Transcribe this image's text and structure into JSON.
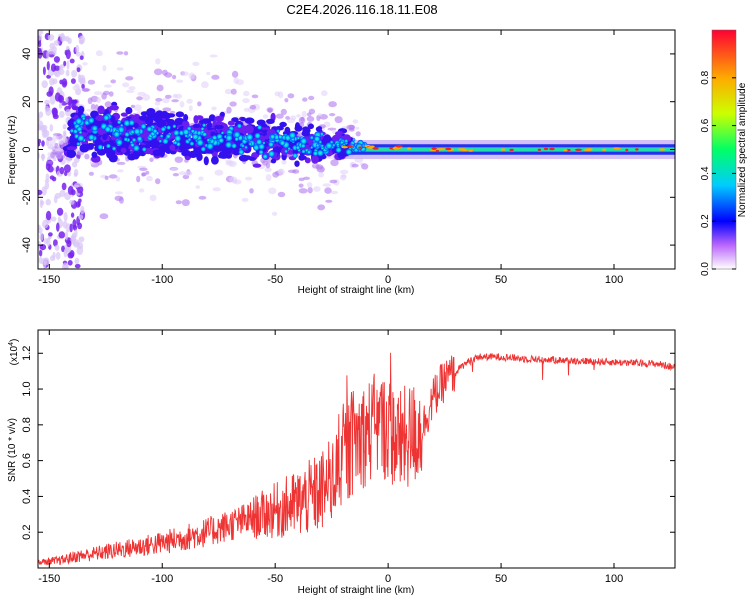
{
  "title": "C2E4.2026.116.18.11.E08",
  "colors": {
    "snr_line": "#ee3333",
    "axis": "#000000",
    "spectro_low": "#e6d8f8",
    "spectro_mid": "#7722ee",
    "spectro_core": "#1133ff"
  },
  "chart_data": [
    {
      "id": "spectrogram",
      "type": "heatmap",
      "xlabel": "Height of straight line (km)",
      "ylabel": "Frequency (Hz)",
      "xlim": [
        -155,
        127
      ],
      "ylim": [
        -50,
        50
      ],
      "xticks": [
        -150,
        -100,
        -50,
        0,
        50,
        100
      ],
      "yticks": [
        -40,
        -20,
        0,
        20,
        40
      ],
      "band_center_hz": [
        {
          "x": -140,
          "center": 8,
          "spread": 9
        },
        {
          "x": -100,
          "center": 6,
          "spread": 8
        },
        {
          "x": -60,
          "center": 4,
          "spread": 7
        },
        {
          "x": -30,
          "center": 2,
          "spread": 6
        },
        {
          "x": -15,
          "center": 1,
          "spread": 3
        },
        {
          "x": 0,
          "center": 1,
          "spread": 2.5
        },
        {
          "x": 20,
          "center": 0,
          "spread": 1.5
        },
        {
          "x": 125,
          "center": 0,
          "spread": 1.5
        }
      ],
      "colorbar": {
        "label": "Normalized spectral amplitude",
        "range": [
          0,
          1
        ],
        "ticks": [
          "0.0",
          "0.2",
          "0.4",
          "0.6",
          "0.8"
        ]
      }
    },
    {
      "id": "snr",
      "type": "line",
      "xlabel": "Height of straight line (km)",
      "ylabel": "SNR (10 * v/v)",
      "multiplier_label": "(x10",
      "multiplier_exp": "4",
      "xlim": [
        -155,
        127
      ],
      "ylim": [
        0,
        1.33
      ],
      "xticks": [
        -150,
        -100,
        -50,
        0,
        50,
        100
      ],
      "yticks": [
        "0.2",
        "0.4",
        "0.6",
        "0.8",
        "1.0",
        "1.2"
      ],
      "series": [
        {
          "name": "SNR",
          "x": [
            -155,
            -145,
            -140,
            -130,
            -120,
            -110,
            -100,
            -90,
            -80,
            -70,
            -60,
            -50,
            -40,
            -30,
            -25,
            -20,
            -15,
            -10,
            -5,
            0,
            5,
            10,
            15,
            20,
            25,
            30,
            35,
            40,
            50,
            60,
            80,
            100,
            120,
            127
          ],
          "y": [
            0.03,
            0.04,
            0.06,
            0.08,
            0.1,
            0.12,
            0.14,
            0.17,
            0.2,
            0.24,
            0.28,
            0.32,
            0.36,
            0.42,
            0.48,
            0.6,
            0.72,
            0.75,
            0.8,
            0.78,
            0.7,
            0.74,
            0.78,
            0.95,
            1.05,
            1.1,
            1.15,
            1.18,
            1.18,
            1.17,
            1.16,
            1.15,
            1.14,
            1.12
          ]
        }
      ]
    }
  ]
}
